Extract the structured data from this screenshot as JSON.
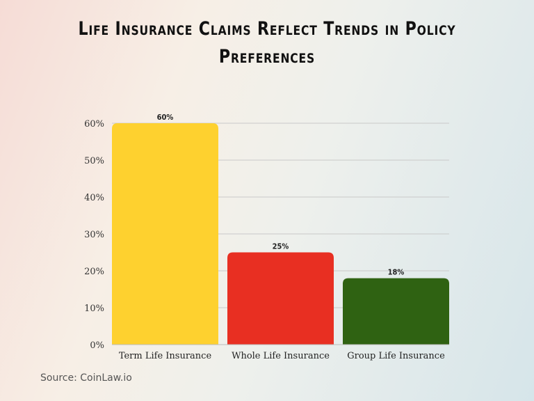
{
  "chart_data": {
    "type": "bar",
    "title": "Life Insurance Claims Reflect Trends in Policy Preferences",
    "categories": [
      "Term Life Insurance",
      "Whole Life Insurance",
      "Group Life Insurance"
    ],
    "values": [
      60,
      25,
      18
    ],
    "data_labels": [
      "60%",
      "25%",
      "18%"
    ],
    "colors": [
      "#fed12f",
      "#e82f22",
      "#2f6212"
    ],
    "ylim": [
      0,
      60
    ],
    "yticks": [
      "0%",
      "10%",
      "20%",
      "30%",
      "40%",
      "50%",
      "60%"
    ],
    "grid": true,
    "xlabel": "",
    "ylabel": ""
  },
  "source": "Source: CoinLaw.io"
}
